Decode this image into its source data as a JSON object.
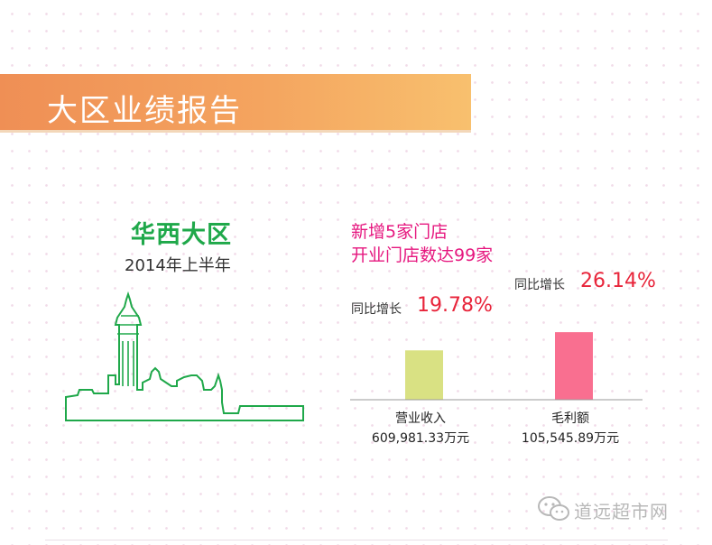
{
  "banner": {
    "title": "大区业绩报告"
  },
  "region": {
    "name": "华西大区",
    "period": "2014年上半年"
  },
  "highlights": [
    "新增5家门店",
    "开业门店数达99家"
  ],
  "chart_data": {
    "type": "bar",
    "categories": [
      "营业收入",
      "毛利额"
    ],
    "values_display": [
      "609,981.33万元",
      "105,545.89万元"
    ],
    "values": [
      609981.33,
      105545.89
    ],
    "unit": "万元",
    "growth_label": "同比增长",
    "growth": [
      "19.78%",
      "26.14%"
    ],
    "growth_values": [
      19.78,
      26.14
    ],
    "bar_heights_relative": [
      0.19,
      0.26
    ],
    "colors": [
      "#d9e183",
      "#f96f90"
    ]
  },
  "watermark": {
    "text": "道远超市网",
    "icon": "wechat-icon"
  },
  "colors": {
    "banner_start": "#ef8f55",
    "banner_end": "#f8c06e",
    "green": "#1fa84a",
    "magenta": "#e6177f",
    "red": "#e8243a"
  }
}
